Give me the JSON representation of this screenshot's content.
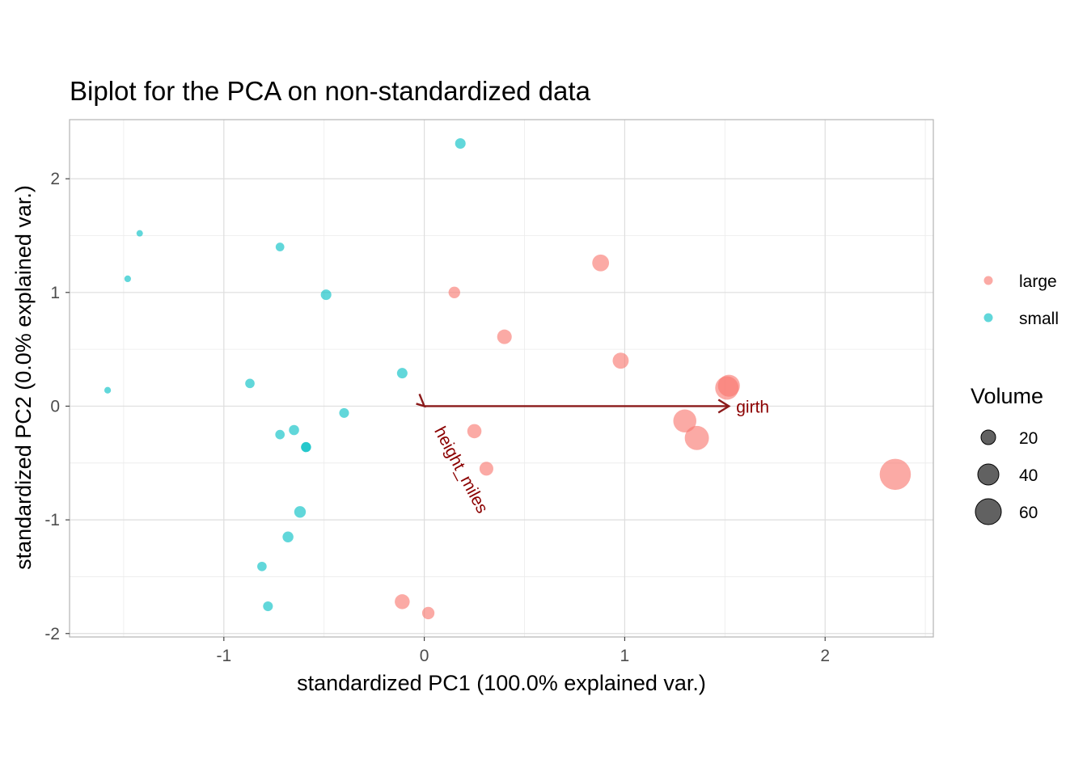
{
  "chart_data": {
    "type": "scatter",
    "title": "Biplot for the PCA on non-standardized data",
    "xlabel": "standardized PC1 (100.0% explained var.)",
    "ylabel": "standardized PC2 (0.0% explained var.)",
    "xlim": [
      -1.77,
      2.54
    ],
    "ylim": [
      -2.03,
      2.52
    ],
    "x_ticks": [
      -1,
      0,
      1,
      2
    ],
    "y_ticks": [
      -2,
      -1,
      0,
      1,
      2
    ],
    "grid": true,
    "legend_position": "right",
    "color_legend": {
      "entries": [
        {
          "label": "large",
          "color": "#F8766D"
        },
        {
          "label": "small",
          "color": "#00BFC4"
        }
      ]
    },
    "size_legend": {
      "title": "Volume",
      "entries": [
        20,
        40,
        60
      ]
    },
    "series": [
      {
        "name": "large",
        "color": "#F8766D",
        "points": [
          {
            "x": 0.88,
            "y": 1.26,
            "volume": 38
          },
          {
            "x": 0.15,
            "y": 1.0,
            "volume": 24
          },
          {
            "x": 0.4,
            "y": 0.61,
            "volume": 32
          },
          {
            "x": 0.98,
            "y": 0.4,
            "volume": 36
          },
          {
            "x": 1.52,
            "y": 0.18,
            "volume": 52
          },
          {
            "x": 1.51,
            "y": 0.16,
            "volume": 56
          },
          {
            "x": 1.3,
            "y": -0.13,
            "volume": 55
          },
          {
            "x": 1.36,
            "y": -0.28,
            "volume": 58
          },
          {
            "x": 0.25,
            "y": -0.22,
            "volume": 31
          },
          {
            "x": 0.31,
            "y": -0.55,
            "volume": 30
          },
          {
            "x": 2.35,
            "y": -0.6,
            "volume": 77
          },
          {
            "x": -0.11,
            "y": -1.72,
            "volume": 33
          },
          {
            "x": 0.02,
            "y": -1.82,
            "volume": 26
          }
        ]
      },
      {
        "name": "small",
        "color": "#00BFC4",
        "points": [
          {
            "x": 0.18,
            "y": 2.31,
            "volume": 21
          },
          {
            "x": -1.42,
            "y": 1.52,
            "volume": 10
          },
          {
            "x": -0.72,
            "y": 1.4,
            "volume": 16
          },
          {
            "x": -1.48,
            "y": 1.12,
            "volume": 10.5
          },
          {
            "x": -0.49,
            "y": 0.98,
            "volume": 21
          },
          {
            "x": -0.11,
            "y": 0.29,
            "volume": 21
          },
          {
            "x": -1.58,
            "y": 0.14,
            "volume": 10.5
          },
          {
            "x": -0.87,
            "y": 0.2,
            "volume": 18
          },
          {
            "x": -0.4,
            "y": -0.06,
            "volume": 19
          },
          {
            "x": -0.65,
            "y": -0.21,
            "volume": 20
          },
          {
            "x": -0.72,
            "y": -0.25,
            "volume": 18
          },
          {
            "x": -0.59,
            "y": -0.36,
            "volume": 19.5
          },
          {
            "x": -0.59,
            "y": -0.36,
            "volume": 19.5
          },
          {
            "x": -0.62,
            "y": -0.93,
            "volume": 24
          },
          {
            "x": -0.68,
            "y": -1.15,
            "volume": 22
          },
          {
            "x": -0.81,
            "y": -1.41,
            "volume": 18
          },
          {
            "x": -0.78,
            "y": -1.76,
            "volume": 19
          }
        ]
      }
    ],
    "arrows": [
      {
        "label": "girth",
        "x": 1.52,
        "y": 0.0
      },
      {
        "label": "height_miles",
        "x": 0.0,
        "y": -0.0
      }
    ],
    "arrow_color": "#8B1A1A",
    "label_color": "#8B0000",
    "grid_color": "#EBEBEB",
    "panel_border_color": "#B3B3B3"
  }
}
